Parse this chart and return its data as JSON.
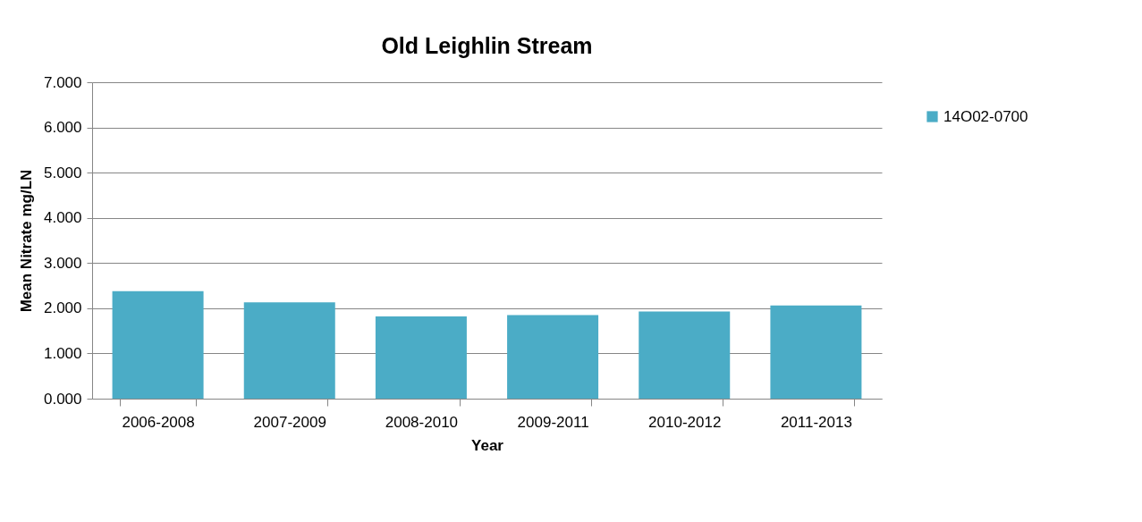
{
  "chart_data": {
    "type": "bar",
    "title": "Old Leighlin Stream",
    "xlabel": "Year",
    "ylabel": "Mean Nitrate mg/LN",
    "categories": [
      "2006-2008",
      "2007-2009",
      "2008-2010",
      "2009-2011",
      "2010-2012",
      "2011-2013"
    ],
    "series": [
      {
        "name": "14O02-0700",
        "color": "#4bacc6",
        "values": [
          2.38,
          2.13,
          1.82,
          1.85,
          1.93,
          2.06
        ]
      }
    ],
    "ylim": [
      0,
      7
    ],
    "yticks": [
      {
        "value": 0,
        "label": "0.000"
      },
      {
        "value": 1,
        "label": "1.000"
      },
      {
        "value": 2,
        "label": "2.000"
      },
      {
        "value": 3,
        "label": "3.000"
      },
      {
        "value": 4,
        "label": "4.000"
      },
      {
        "value": 5,
        "label": "5.000"
      },
      {
        "value": 6,
        "label": "6.000"
      },
      {
        "value": 7,
        "label": "7.000"
      }
    ],
    "grid": "y",
    "legend": "right"
  }
}
